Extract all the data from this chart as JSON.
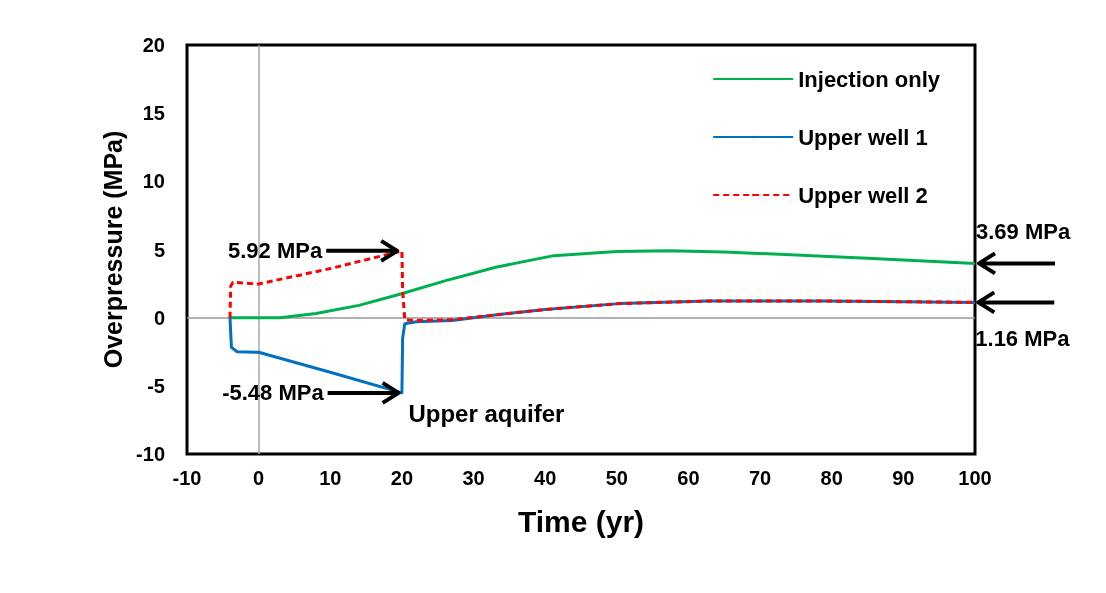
{
  "chart_data": {
    "type": "line",
    "xlabel": "Time (yr)",
    "ylabel": "Overpressure (MPa)",
    "xlim": [
      -10,
      100
    ],
    "xticks": [
      -10,
      0,
      10,
      20,
      30,
      40,
      50,
      60,
      70,
      80,
      90,
      100
    ],
    "ylim": [
      -10,
      20
    ],
    "yticks": [
      -10,
      -5,
      0,
      5,
      10,
      15,
      20
    ],
    "grid": false,
    "legend": "top right",
    "marker": "none",
    "ref_lines": [
      {
        "axis": "x",
        "value": 0,
        "color": "#a6a6a6"
      },
      {
        "axis": "y",
        "value": 0,
        "color": "#999999"
      }
    ],
    "series": [
      {
        "name": "Injection only",
        "color": "#00b050",
        "line_style": "solid",
        "x": [
          -4,
          0,
          3,
          8,
          14,
          19.7,
          26,
          33.1,
          41.2,
          50,
          57.3,
          65,
          73.5,
          85,
          100
        ],
        "values": [
          0,
          0,
          0,
          0.3,
          0.9,
          1.72,
          2.7,
          3.7,
          4.55,
          4.85,
          4.9,
          4.82,
          4.63,
          4.35,
          3.98
        ]
      },
      {
        "name": "Upper well 1",
        "color": "#0070c0",
        "line_style": "solid",
        "x": [
          -4,
          -3.8,
          -3,
          0,
          10,
          20,
          20.1,
          20.4,
          22,
          27,
          33,
          40,
          50.3,
          62.7,
          79,
          90,
          100
        ],
        "values": [
          0,
          -2.18,
          -2.5,
          -2.54,
          -4.0,
          -5.52,
          -1.5,
          -0.45,
          -0.3,
          -0.2,
          0.2,
          0.6,
          1.03,
          1.22,
          1.22,
          1.17,
          1.12
        ]
      },
      {
        "name": "Upper well 2",
        "color": "#ff0000",
        "line_style": "dashed",
        "x": [
          -4,
          -3.9,
          -3.6,
          0,
          10,
          20,
          20.1,
          20.4,
          22,
          27,
          33,
          40,
          50.3,
          62.7,
          79,
          90,
          100
        ],
        "values": [
          0,
          2.3,
          2.59,
          2.47,
          3.6,
          4.9,
          2.0,
          -0.16,
          -0.2,
          -0.15,
          0.2,
          0.6,
          1.03,
          1.22,
          1.22,
          1.17,
          1.12
        ]
      }
    ],
    "annotations": [
      {
        "text": "5.92 MPa",
        "x": 19.9,
        "y": 4.9
      },
      {
        "text": "-5.48 MPa",
        "x": 20.1,
        "y": -5.52
      },
      {
        "text": "3.69 MPa",
        "x": 100,
        "y": 3.98
      },
      {
        "text": "1.16 MPa",
        "x": 99.9,
        "y": 1.12
      },
      "Upper aquifer"
    ]
  }
}
